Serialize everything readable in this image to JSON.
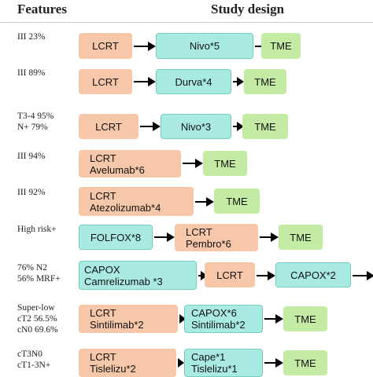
{
  "header": {
    "features": "Features",
    "study_design": "Study design"
  },
  "rows": [
    {
      "feature": "III 23%",
      "steps": [
        {
          "type": "lcrt",
          "lines": [
            "LCRT"
          ]
        },
        {
          "type": "drug",
          "lines": [
            "Nivo*5"
          ]
        },
        {
          "type": "tme",
          "lines": [
            "TME"
          ]
        }
      ]
    },
    {
      "feature": "III 89%",
      "steps": [
        {
          "type": "lcrt",
          "lines": [
            "LCRT"
          ]
        },
        {
          "type": "drug",
          "lines": [
            "Durva*4"
          ]
        },
        {
          "type": "tme",
          "lines": [
            "TME"
          ]
        }
      ]
    },
    {
      "feature": "T3-4 95%\nN+ 79%",
      "steps": [
        {
          "type": "lcrt",
          "lines": [
            "LCRT"
          ]
        },
        {
          "type": "drug",
          "lines": [
            "Nivo*3"
          ]
        },
        {
          "type": "tme",
          "lines": [
            "TME"
          ]
        }
      ]
    },
    {
      "feature": "III 94%",
      "steps": [
        {
          "type": "lcrt",
          "lines": [
            "LCRT",
            "Avelumab*6"
          ]
        },
        {
          "type": "tme",
          "lines": [
            "TME"
          ]
        }
      ]
    },
    {
      "feature": "III 92%",
      "steps": [
        {
          "type": "lcrt",
          "lines": [
            "LCRT",
            "Atezolizumab*4"
          ]
        },
        {
          "type": "tme",
          "lines": [
            "TME"
          ]
        }
      ]
    },
    {
      "feature": "High risk+",
      "steps": [
        {
          "type": "drug",
          "lines": [
            "FOLFOX*8"
          ]
        },
        {
          "type": "lcrt",
          "lines": [
            "LCRT",
            "Pembro*6"
          ]
        },
        {
          "type": "tme",
          "lines": [
            "TME"
          ]
        }
      ]
    },
    {
      "feature": "76% N2\n56% MRF+",
      "steps": [
        {
          "type": "drug",
          "lines": [
            "CAPOX",
            "Camrelizumab      *3"
          ]
        },
        {
          "type": "lcrt",
          "lines": [
            "LCRT"
          ]
        },
        {
          "type": "drug",
          "lines": [
            "CAPOX*2"
          ]
        }
      ]
    },
    {
      "feature": "Super-low\ncT2 56.5%\ncN0 69.6%",
      "steps": [
        {
          "type": "lcrt",
          "lines": [
            "LCRT",
            "Sintilimab*2"
          ]
        },
        {
          "type": "drug",
          "lines": [
            "CAPOX*6",
            "Sintilimab*2"
          ]
        },
        {
          "type": "tme",
          "lines": [
            "TME"
          ]
        }
      ]
    },
    {
      "feature": "cT3N0\ncT1-3N+",
      "steps": [
        {
          "type": "lcrt",
          "lines": [
            "LCRT",
            "Tislelizu*2"
          ]
        },
        {
          "type": "drug",
          "lines": [
            "Cape*1",
            "Tislelizu*1"
          ]
        },
        {
          "type": "tme",
          "lines": [
            "TME"
          ]
        }
      ]
    }
  ]
}
